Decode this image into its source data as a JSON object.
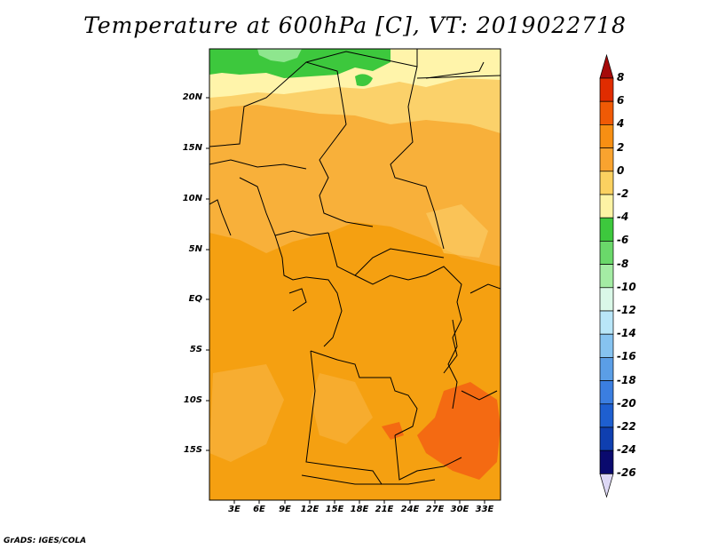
{
  "title": "Temperature at 600hPa [C], VT: 2019022718",
  "credit": "GrADS: IGES/COLA",
  "lat_labels": [
    "20N",
    "15N",
    "10N",
    "5N",
    "EQ",
    "5S",
    "10S",
    "15S"
  ],
  "lon_labels": [
    "3E",
    "6E",
    "9E",
    "12E",
    "15E",
    "18E",
    "21E",
    "24E",
    "27E",
    "30E",
    "33E"
  ],
  "colorbar": {
    "labels": [
      "8",
      "6",
      "4",
      "2",
      "0",
      "-2",
      "-4",
      "-6",
      "-8",
      "-10",
      "-12",
      "-14",
      "-16",
      "-18",
      "-20",
      "-22",
      "-24",
      "-26"
    ],
    "colors": [
      "#a50a0a",
      "#e02c00",
      "#f05a05",
      "#f78f13",
      "#f9a32f",
      "#fbd160",
      "#fdf3a4",
      "#3dc83d",
      "#6ad86a",
      "#a4eca4",
      "#daf8e8",
      "#b9e6f8",
      "#86c3f0",
      "#5b9ee6",
      "#3b7ee0",
      "#1e5fd0",
      "#0f3fb0",
      "#0a0a6e",
      "#ddd8f5"
    ]
  },
  "map_colors": {
    "deep_orange": "#f5a011",
    "orange": "#f8b03a",
    "light_orange": "#fbd16a",
    "pale_yellow": "#fff4aa",
    "green": "#3dc83d",
    "light_green": "#8ee68e",
    "red_orange": "#f46a12",
    "border": "#000000"
  }
}
